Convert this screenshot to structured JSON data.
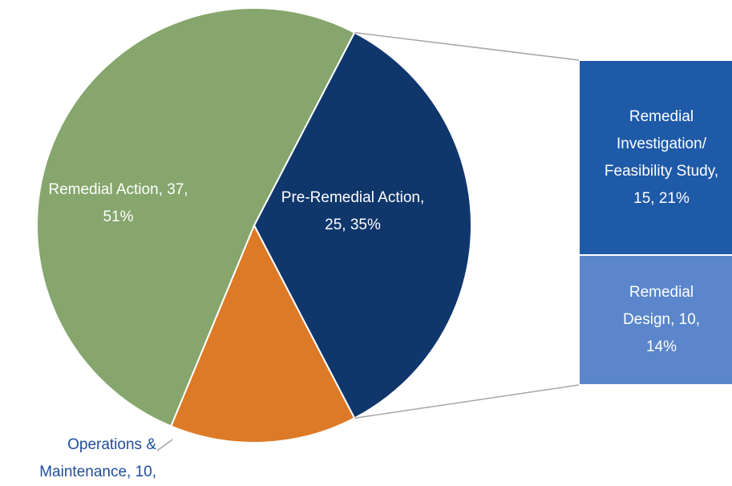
{
  "chart_data": {
    "type": "pie-of-bar",
    "categories": [
      "Pre-Remedial Action",
      "Operations & Maintenance",
      "Remedial Action"
    ],
    "values": [
      25,
      10,
      37
    ],
    "value_labels": [
      "Pre-Remedial Action, 25, 35%",
      "Operations & Maintenance, 10,",
      "Remedial Action, 37, 51%"
    ],
    "colors": [
      "#10376c",
      "#dd7a27",
      "#86a66d"
    ],
    "secondary": {
      "categories": [
        "Remedial Investigation/ Feasibility Study",
        "Remedial Design"
      ],
      "values": [
        15,
        10
      ],
      "value_labels": [
        "Remedial Investigation/ Feasibility Study, 15, 21%",
        "Remedial Design, 10, 14%"
      ],
      "colors": [
        "#1f5aa8",
        "#5b86cb"
      ]
    }
  }
}
